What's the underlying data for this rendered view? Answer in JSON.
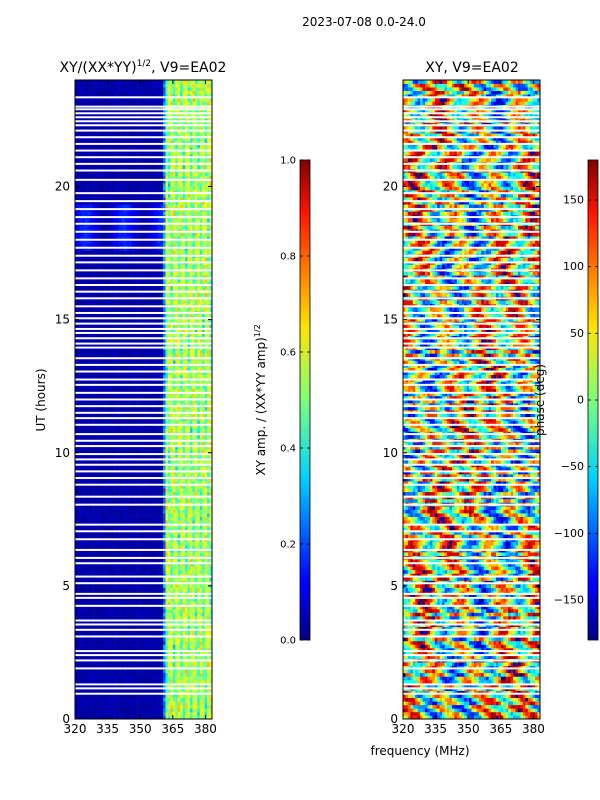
{
  "suptitle": "2023-07-08 0.0-24.0",
  "chart_data": [
    {
      "type": "heatmap",
      "title": "XY/(XX*YY)^(1/2), V9=EA02",
      "title_main": "XY/(XX*YY)",
      "title_exp": "1/2",
      "title_tail": ", V9=EA02",
      "xlabel": "",
      "ylabel": "UT (hours)",
      "x_range": [
        320,
        383
      ],
      "y_range": [
        0,
        24
      ],
      "x_ticks": [
        "320",
        "335",
        "350",
        "365",
        "380"
      ],
      "x_tick_values": [
        320,
        335,
        350,
        365,
        380
      ],
      "y_ticks": [
        "0",
        "5",
        "10",
        "15",
        "20"
      ],
      "y_tick_values": [
        0,
        5,
        10,
        15,
        20
      ],
      "colorbar": {
        "label": "XY amp. / (XX*YY amp)^(1/2)",
        "label_main": "XY amp. / (XX*YY amp)",
        "label_exp": "1/2",
        "range": [
          0,
          1
        ],
        "ticks": [
          "0.0",
          "0.2",
          "0.4",
          "0.6",
          "0.8",
          "1.0"
        ],
        "tick_values": [
          0,
          0.2,
          0.4,
          0.6,
          0.8,
          1.0
        ]
      }
    },
    {
      "type": "heatmap",
      "title": "XY, V9=EA02",
      "xlabel": "frequency (MHz)",
      "ylabel": "",
      "x_range": [
        320,
        383
      ],
      "y_range": [
        0,
        24
      ],
      "x_ticks": [
        "320",
        "335",
        "350",
        "365",
        "380"
      ],
      "x_tick_values": [
        320,
        335,
        350,
        365,
        380
      ],
      "y_ticks": [
        "0",
        "5",
        "10",
        "15",
        "20"
      ],
      "y_tick_values": [
        0,
        5,
        10,
        15,
        20
      ],
      "colorbar": {
        "label": "phase (deg)",
        "range": [
          -180,
          180
        ],
        "ticks": [
          "−150",
          "−100",
          "−50",
          "0",
          "50",
          "100",
          "150"
        ],
        "tick_values": [
          -150,
          -100,
          -50,
          0,
          50,
          100,
          150
        ]
      }
    }
  ],
  "flagged_ut_hours": [
    0.95,
    1.15,
    1.3,
    1.9,
    2.2,
    2.4,
    2.55,
    3.1,
    3.35,
    3.55,
    3.7,
    4.25,
    4.55,
    4.7,
    5.1,
    5.35,
    5.85,
    6.05,
    6.35,
    6.75,
    7.05,
    7.3,
    8.05,
    8.35,
    8.8,
    9.05,
    9.3,
    9.55,
    9.75,
    9.95,
    10.25,
    10.45,
    10.7,
    11.05,
    11.3,
    11.5,
    11.75,
    12.0,
    12.25,
    12.55,
    12.75,
    13.05,
    13.3,
    13.55,
    13.95,
    14.1,
    14.3,
    14.5,
    14.65,
    14.85,
    15.05,
    15.25,
    15.5,
    15.8,
    16.05,
    16.3,
    16.55,
    16.85,
    17.15,
    17.4,
    17.7,
    18.0,
    18.3,
    18.6,
    18.85,
    19.15,
    19.45,
    19.75,
    20.25,
    20.6,
    20.85,
    21.1,
    21.35,
    21.6,
    21.85,
    22.1,
    22.3,
    22.45,
    22.6,
    22.75,
    22.9,
    23.0,
    23.35
  ]
}
